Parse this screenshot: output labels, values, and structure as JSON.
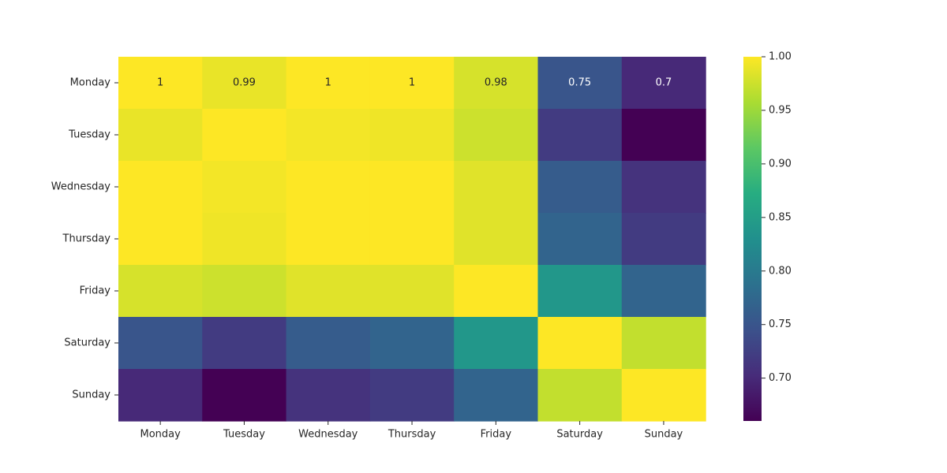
{
  "chart_data": {
    "type": "heatmap",
    "title": "",
    "xlabel": "",
    "ylabel": "",
    "x_categories": [
      "Monday",
      "Tuesday",
      "Wednesday",
      "Thursday",
      "Friday",
      "Saturday",
      "Sunday"
    ],
    "y_categories": [
      "Monday",
      "Tuesday",
      "Wednesday",
      "Thursday",
      "Friday",
      "Saturday",
      "Sunday"
    ],
    "values": [
      [
        1.0,
        0.99,
        1.0,
        1.0,
        0.98,
        0.75,
        0.7
      ],
      [
        0.99,
        1.0,
        0.995,
        0.993,
        0.975,
        0.72,
        0.66
      ],
      [
        1.0,
        0.995,
        1.0,
        1.0,
        0.985,
        0.76,
        0.71
      ],
      [
        1.0,
        0.993,
        1.0,
        1.0,
        0.985,
        0.77,
        0.72
      ],
      [
        0.98,
        0.975,
        0.985,
        0.985,
        1.0,
        0.84,
        0.77
      ],
      [
        0.75,
        0.72,
        0.76,
        0.77,
        0.84,
        1.0,
        0.97
      ],
      [
        0.7,
        0.66,
        0.71,
        0.72,
        0.77,
        0.97,
        1.0
      ]
    ],
    "annotations": [
      [
        "1",
        "0.99",
        "1",
        "1",
        "0.98",
        "0.75",
        "0.7"
      ]
    ],
    "colormap": "viridis",
    "color_range": [
      0.66,
      1.0
    ],
    "colorbar_ticks": [
      "0.70",
      "0.75",
      "0.80",
      "0.85",
      "0.90",
      "0.95",
      "1.00"
    ],
    "colorbar_tick_values": [
      0.7,
      0.75,
      0.8,
      0.85,
      0.9,
      0.95,
      1.0
    ]
  }
}
